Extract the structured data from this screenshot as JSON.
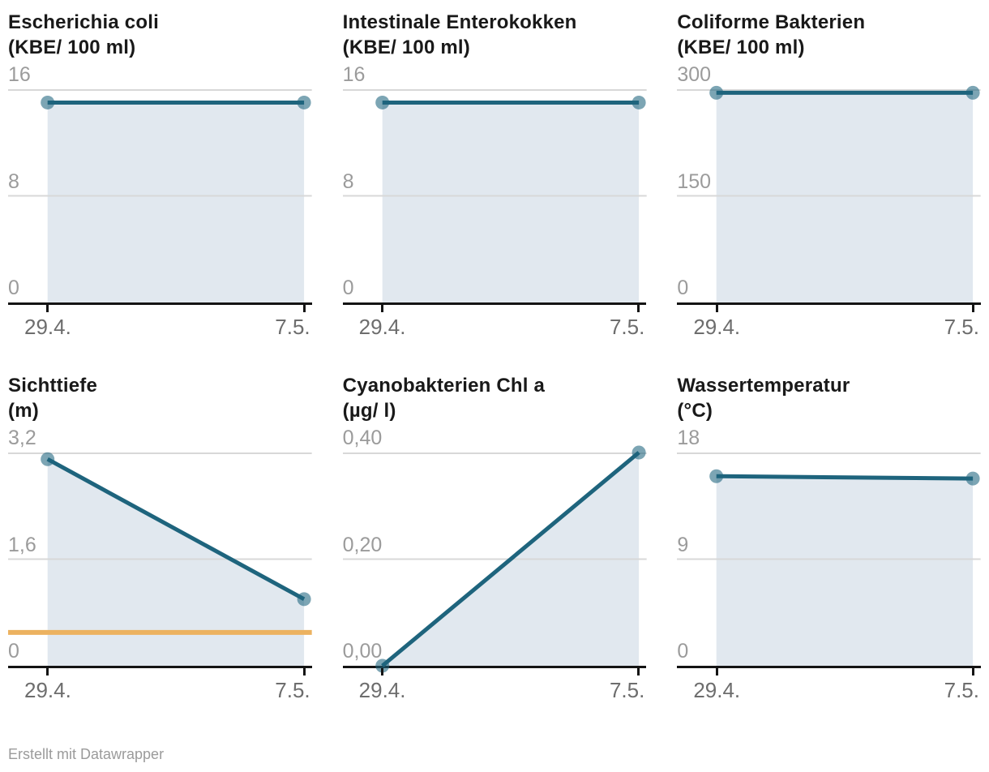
{
  "footer": {
    "credit": "Erstellt mit Datawrapper"
  },
  "colors": {
    "line": "#1e647d",
    "dot": "#1e647d",
    "dot_opacity": 0.58,
    "area_fill": "#e1e8ef",
    "gridline": "#d8d8d8",
    "axis": "#141414",
    "threshold": "#ecb260",
    "title_text": "#191919",
    "y_tick_text": "#9b9b9b",
    "x_tick_text": "#6d6d6d"
  },
  "chart_data": [
    {
      "id": "escherichia-coli",
      "type": "area",
      "title": "Escherichia coli",
      "subtitle": "(KBE/ 100 ml)",
      "x": [
        "29.4.",
        "7.5."
      ],
      "values": [
        15,
        15
      ],
      "ylim": [
        0,
        16
      ],
      "y_ticks": [
        {
          "label": "16",
          "value": 16
        },
        {
          "label": "8",
          "value": 8
        },
        {
          "label": "0",
          "value": 0
        }
      ],
      "grid": true,
      "legend": "none"
    },
    {
      "id": "intestinale-enterokokken",
      "type": "area",
      "title": "Intestinale Enterokokken",
      "subtitle": "(KBE/ 100 ml)",
      "x": [
        "29.4.",
        "7.5."
      ],
      "values": [
        15,
        15
      ],
      "ylim": [
        0,
        16
      ],
      "y_ticks": [
        {
          "label": "16",
          "value": 16
        },
        {
          "label": "8",
          "value": 8
        },
        {
          "label": "0",
          "value": 0
        }
      ],
      "grid": true,
      "legend": "none"
    },
    {
      "id": "coliforme-bakterien",
      "type": "area",
      "title": "Coliforme Bakterien",
      "subtitle": "(KBE/ 100 ml)",
      "x": [
        "29.4.",
        "7.5."
      ],
      "values": [
        295,
        295
      ],
      "ylim": [
        0,
        300
      ],
      "y_ticks": [
        {
          "label": "300",
          "value": 300
        },
        {
          "label": "150",
          "value": 150
        },
        {
          "label": "0",
          "value": 0
        }
      ],
      "grid": true,
      "legend": "none"
    },
    {
      "id": "sichttiefe",
      "type": "area",
      "title": "Sichttiefe",
      "subtitle": "(m)",
      "x": [
        "29.4.",
        "7.5."
      ],
      "values": [
        3.1,
        1.0
      ],
      "ylim": [
        0,
        3.2
      ],
      "y_ticks": [
        {
          "label": "3,2",
          "value": 3.2
        },
        {
          "label": "1,6",
          "value": 1.6
        },
        {
          "label": "0",
          "value": 0
        }
      ],
      "threshold": {
        "value": 0.5
      },
      "grid": true,
      "legend": "none"
    },
    {
      "id": "cyanobakterien-chl-a",
      "type": "area",
      "title": "Cyanobakterien Chl a",
      "subtitle": "(µg/ l)",
      "x": [
        "29.4.",
        "7.5."
      ],
      "values": [
        0.0,
        0.4
      ],
      "ylim": [
        0,
        0.4
      ],
      "y_ticks": [
        {
          "label": "0,40",
          "value": 0.4
        },
        {
          "label": "0,20",
          "value": 0.2
        },
        {
          "label": "0,00",
          "value": 0
        }
      ],
      "grid": true,
      "legend": "none"
    },
    {
      "id": "wassertemperatur",
      "type": "area",
      "title": "Wassertemperatur",
      "subtitle": "(°C)",
      "x": [
        "29.4.",
        "7.5."
      ],
      "values": [
        16,
        15.8
      ],
      "ylim": [
        0,
        18
      ],
      "y_ticks": [
        {
          "label": "18",
          "value": 18
        },
        {
          "label": "9",
          "value": 9
        },
        {
          "label": "0",
          "value": 0
        }
      ],
      "grid": true,
      "legend": "none"
    }
  ]
}
